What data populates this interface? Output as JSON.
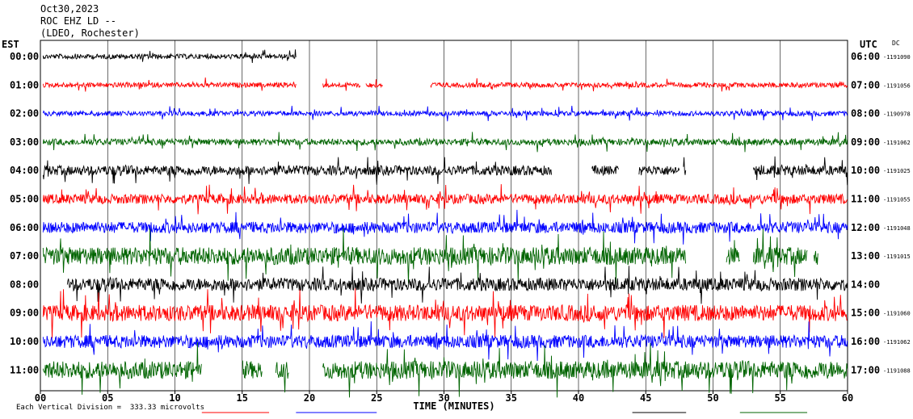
{
  "header": {
    "date": "Oct30,2023",
    "station": "ROC EHZ LD --",
    "network": "(LDEO, Rochester)"
  },
  "left_timezone": "EST",
  "right_timezone": "UTC",
  "dc_label": "DC",
  "footer": {
    "vertical_division": "Each Vertical Division =  333.33 microvolts"
  },
  "chart_data": {
    "type": "line",
    "title": "",
    "xlabel": "TIME (MINUTES)",
    "ylabel": "",
    "xlim": [
      0,
      60
    ],
    "x_ticks": [
      "00",
      "05",
      "10",
      "15",
      "20",
      "25",
      "30",
      "35",
      "40",
      "45",
      "50",
      "55",
      "60"
    ],
    "grid": true,
    "trace_colors": [
      "#000000",
      "#ff0000",
      "#0000ff",
      "#006400"
    ],
    "rows": [
      {
        "est": "00:00",
        "utc": "06:00",
        "dc": "-1191090",
        "color": "#000000",
        "segments": [
          [
            0.2,
            19.0
          ]
        ],
        "amp": 3
      },
      {
        "est": "01:00",
        "utc": "07:00",
        "dc": "-1191056",
        "color": "#ff0000",
        "segments": [
          [
            0.2,
            19.0
          ],
          [
            21.0,
            23.8
          ],
          [
            24.2,
            25.5
          ],
          [
            29.0,
            60
          ]
        ],
        "amp": 3
      },
      {
        "est": "02:00",
        "utc": "08:00",
        "dc": "-1190978",
        "color": "#0000ff",
        "segments": [
          [
            0.2,
            60
          ]
        ],
        "amp": 3
      },
      {
        "est": "03:00",
        "utc": "09:00",
        "dc": "-1191062",
        "color": "#006400",
        "segments": [
          [
            0.2,
            60
          ]
        ],
        "amp": 4
      },
      {
        "est": "04:00",
        "utc": "10:00",
        "dc": "-1191025",
        "color": "#000000",
        "segments": [
          [
            0.2,
            38.0
          ],
          [
            41.0,
            43.0
          ],
          [
            44.5,
            47.5
          ],
          [
            47.8,
            48.0
          ],
          [
            53.0,
            60
          ]
        ],
        "amp": 6
      },
      {
        "est": "05:00",
        "utc": "11:00",
        "dc": "-1191055",
        "color": "#ff0000",
        "segments": [
          [
            0.2,
            60
          ]
        ],
        "amp": 6
      },
      {
        "est": "06:00",
        "utc": "12:00",
        "dc": "-1191048",
        "color": "#0000ff",
        "segments": [
          [
            0.2,
            60
          ]
        ],
        "amp": 7
      },
      {
        "est": "07:00",
        "utc": "13:00",
        "dc": "-1191015",
        "color": "#006400",
        "segments": [
          [
            0.2,
            48.0
          ],
          [
            51.0,
            52.0
          ],
          [
            53.0,
            57.0
          ],
          [
            57.5,
            57.8
          ]
        ],
        "amp": 11
      },
      {
        "est": "08:00",
        "utc": "14:00",
        "dc": "",
        "color": "#000000",
        "segments": [
          [
            2.0,
            60
          ]
        ],
        "amp": 8
      },
      {
        "est": "09:00",
        "utc": "15:00",
        "dc": "-1191060",
        "color": "#ff0000",
        "segments": [
          [
            0.2,
            60
          ]
        ],
        "amp": 10
      },
      {
        "est": "10:00",
        "utc": "16:00",
        "dc": "-1191062",
        "color": "#0000ff",
        "segments": [
          [
            0.2,
            60
          ]
        ],
        "amp": 8
      },
      {
        "est": "11:00",
        "utc": "17:00",
        "dc": "-1191088",
        "color": "#006400",
        "segments": [
          [
            0.2,
            12.0
          ],
          [
            15.0,
            16.5
          ],
          [
            17.5,
            18.5
          ],
          [
            21.0,
            60
          ]
        ],
        "amp": 11
      }
    ]
  }
}
